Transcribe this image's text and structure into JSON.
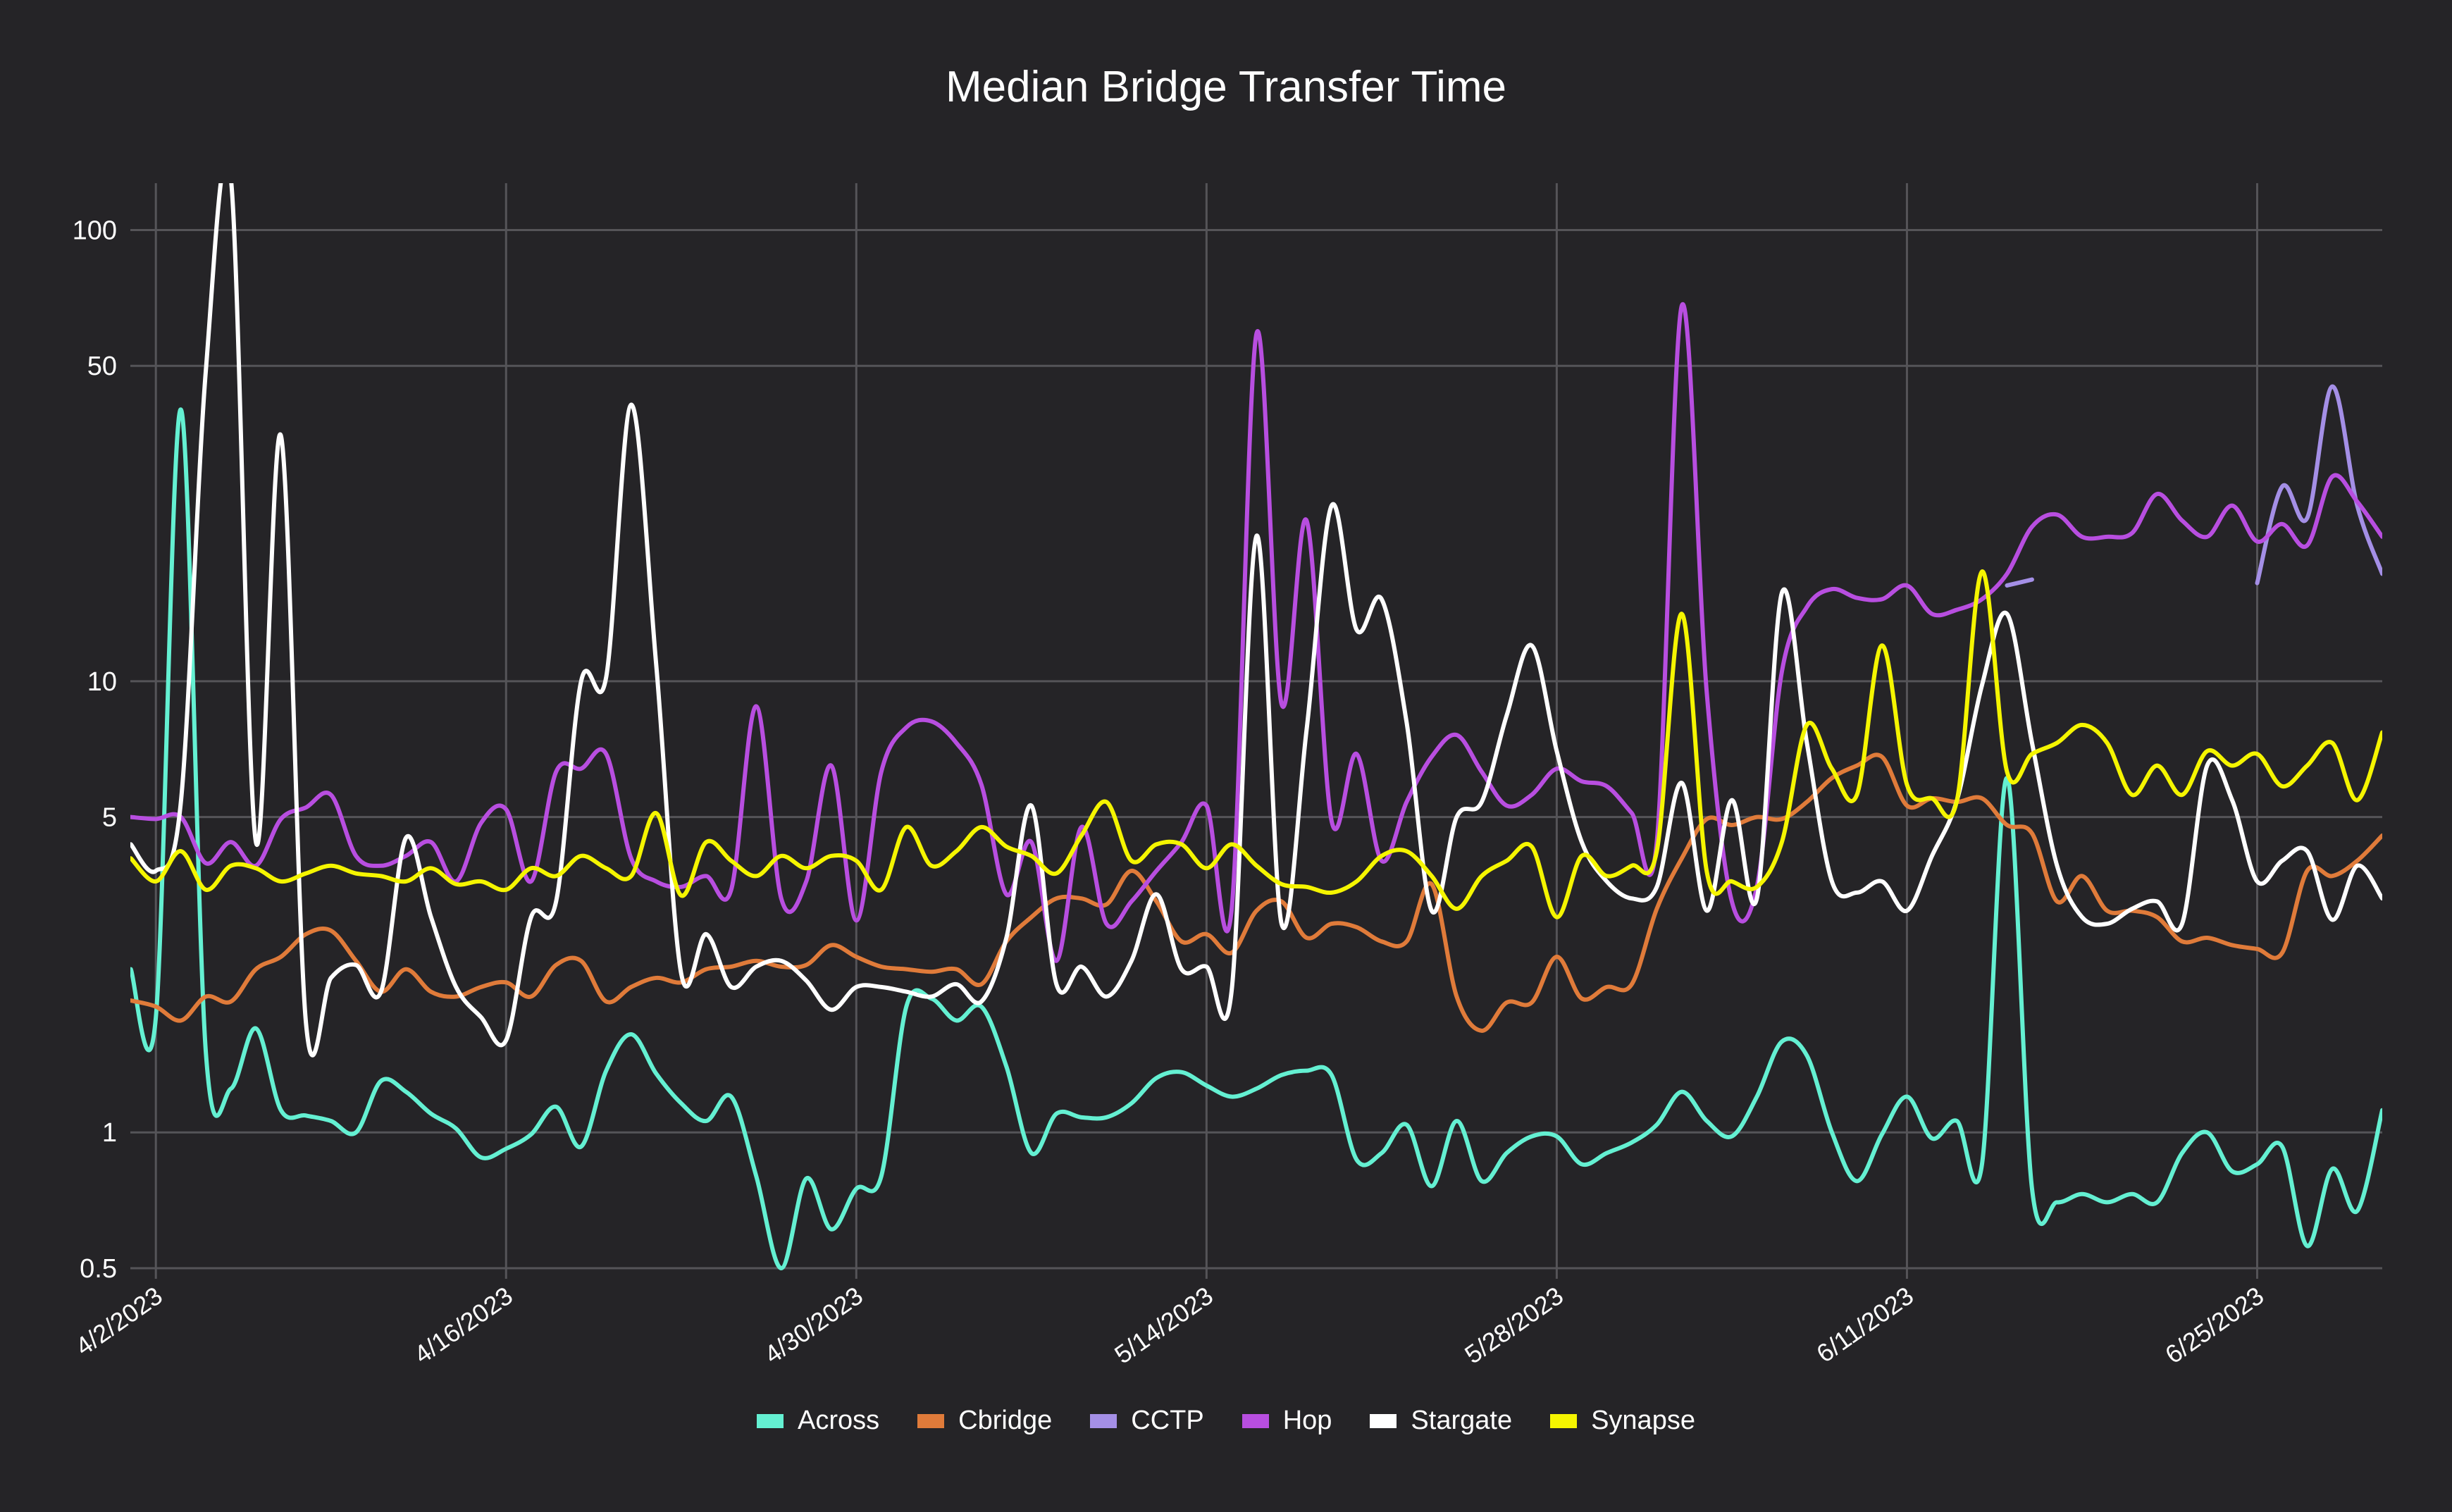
{
  "chart_data": {
    "type": "line",
    "title": "Median Bridge Transfer Time",
    "xlabel": "",
    "ylabel": "",
    "y_scale": "log",
    "ylim": [
      0.5,
      127
    ],
    "grid": true,
    "legend_position": "bottom",
    "y_ticks": [
      {
        "value": 100,
        "label": "100"
      },
      {
        "value": 50,
        "label": "50"
      },
      {
        "value": 10,
        "label": "10"
      },
      {
        "value": 5,
        "label": "5"
      },
      {
        "value": 1,
        "label": "1"
      },
      {
        "value": 0.5,
        "label": "0.5"
      }
    ],
    "x_ticks": [
      "4/2/2023",
      "4/16/2023",
      "4/30/2023",
      "5/14/2023",
      "5/28/2023",
      "6/11/2023",
      "6/25/2023"
    ],
    "x": [
      "4/1/2023",
      "4/2/2023",
      "4/3/2023",
      "4/4/2023",
      "4/5/2023",
      "4/6/2023",
      "4/7/2023",
      "4/8/2023",
      "4/9/2023",
      "4/10/2023",
      "4/11/2023",
      "4/12/2023",
      "4/13/2023",
      "4/14/2023",
      "4/15/2023",
      "4/16/2023",
      "4/17/2023",
      "4/18/2023",
      "4/19/2023",
      "4/20/2023",
      "4/21/2023",
      "4/22/2023",
      "4/23/2023",
      "4/24/2023",
      "4/25/2023",
      "4/26/2023",
      "4/27/2023",
      "4/28/2023",
      "4/29/2023",
      "4/30/2023",
      "5/1/2023",
      "5/2/2023",
      "5/3/2023",
      "5/4/2023",
      "5/5/2023",
      "5/6/2023",
      "5/7/2023",
      "5/8/2023",
      "5/9/2023",
      "5/10/2023",
      "5/11/2023",
      "5/12/2023",
      "5/13/2023",
      "5/14/2023",
      "5/15/2023",
      "5/16/2023",
      "5/17/2023",
      "5/18/2023",
      "5/19/2023",
      "5/20/2023",
      "5/21/2023",
      "5/22/2023",
      "5/23/2023",
      "5/24/2023",
      "5/25/2023",
      "5/26/2023",
      "5/27/2023",
      "5/28/2023",
      "5/29/2023",
      "5/30/2023",
      "5/31/2023",
      "6/1/2023",
      "6/2/2023",
      "6/3/2023",
      "6/4/2023",
      "6/5/2023",
      "6/6/2023",
      "6/7/2023",
      "6/8/2023",
      "6/9/2023",
      "6/10/2023",
      "6/11/2023",
      "6/12/2023",
      "6/13/2023",
      "6/14/2023",
      "6/15/2023",
      "6/16/2023",
      "6/17/2023",
      "6/18/2023",
      "6/19/2023",
      "6/20/2023",
      "6/21/2023",
      "6/22/2023",
      "6/23/2023",
      "6/24/2023",
      "6/25/2023",
      "6/26/2023",
      "6/27/2023",
      "6/28/2023",
      "6/29/2023",
      "6/30/2023"
    ],
    "series": [
      {
        "name": "Across",
        "color": "#64f0d2",
        "values": [
          2.3,
          1.8,
          40,
          1.5,
          1.25,
          1.7,
          1.12,
          1.09,
          1.06,
          1.0,
          1.3,
          1.23,
          1.1,
          1.02,
          0.88,
          0.92,
          0.99,
          1.14,
          0.93,
          1.37,
          1.65,
          1.35,
          1.16,
          1.06,
          1.2,
          0.8,
          0.5,
          0.79,
          0.61,
          0.75,
          0.8,
          1.9,
          1.98,
          1.77,
          1.9,
          1.4,
          0.9,
          1.1,
          1.08,
          1.08,
          1.16,
          1.32,
          1.36,
          1.27,
          1.2,
          1.25,
          1.34,
          1.37,
          1.34,
          0.87,
          0.9,
          1.04,
          0.76,
          1.06,
          0.78,
          0.9,
          0.98,
          0.98,
          0.85,
          0.9,
          0.95,
          1.04,
          1.23,
          1.06,
          0.98,
          1.2,
          1.59,
          1.48,
          1.0,
          0.78,
          0.99,
          1.2,
          0.97,
          1.06,
          0.85,
          6.1,
          0.75,
          0.7,
          0.73,
          0.7,
          0.73,
          0.7,
          0.9,
          1.0,
          0.82,
          0.85,
          0.93,
          0.56,
          0.83,
          0.67,
          1.12
        ]
      },
      {
        "name": "Cbridge",
        "color": "#e07b3a",
        "values": [
          1.96,
          1.9,
          1.77,
          2.0,
          1.95,
          2.3,
          2.45,
          2.75,
          2.8,
          2.4,
          2.05,
          2.3,
          2.05,
          2.0,
          2.1,
          2.15,
          2.0,
          2.35,
          2.4,
          1.95,
          2.1,
          2.2,
          2.15,
          2.3,
          2.33,
          2.4,
          2.33,
          2.35,
          2.6,
          2.45,
          2.33,
          2.3,
          2.27,
          2.3,
          2.13,
          2.65,
          3.0,
          3.3,
          3.3,
          3.2,
          3.8,
          3.25,
          2.65,
          2.75,
          2.5,
          3.1,
          3.25,
          2.7,
          2.9,
          2.85,
          2.65,
          2.65,
          3.55,
          2.0,
          1.68,
          1.94,
          1.94,
          2.45,
          1.98,
          2.1,
          2.13,
          3.13,
          4.05,
          4.95,
          4.8,
          5.0,
          4.95,
          5.4,
          6.1,
          6.5,
          6.8,
          5.3,
          5.5,
          5.4,
          5.5,
          4.8,
          4.6,
          3.25,
          3.7,
          3.1,
          3.1,
          3.0,
          2.65,
          2.7,
          2.6,
          2.55,
          2.5,
          3.8,
          3.7,
          4.0,
          4.55
        ]
      },
      {
        "name": "CCTP",
        "color": "#a48fe6",
        "values": [
          null,
          null,
          null,
          null,
          null,
          null,
          null,
          null,
          null,
          null,
          null,
          null,
          null,
          null,
          null,
          null,
          null,
          null,
          null,
          null,
          null,
          null,
          null,
          null,
          null,
          null,
          null,
          null,
          null,
          null,
          null,
          null,
          null,
          null,
          null,
          null,
          null,
          null,
          null,
          null,
          null,
          null,
          null,
          null,
          null,
          null,
          null,
          null,
          null,
          null,
          null,
          null,
          null,
          null,
          null,
          null,
          null,
          null,
          null,
          null,
          null,
          null,
          null,
          null,
          null,
          null,
          null,
          null,
          null,
          null,
          null,
          null,
          null,
          null,
          null,
          16.3,
          16.8,
          null,
          null,
          null,
          null,
          null,
          null,
          null,
          null,
          16.5,
          27,
          23,
          45,
          24.5,
          17.3
        ]
      },
      {
        "name": "Hop",
        "color": "#b84ee0",
        "values": [
          5.0,
          4.95,
          5.0,
          3.95,
          4.4,
          3.9,
          4.95,
          5.25,
          5.6,
          4.1,
          3.9,
          4.1,
          4.4,
          3.6,
          4.85,
          5.2,
          3.6,
          6.3,
          6.4,
          6.9,
          4.05,
          3.6,
          3.5,
          3.7,
          3.45,
          8.8,
          3.3,
          3.6,
          6.5,
          2.95,
          6.3,
          7.9,
          8.15,
          7.3,
          5.9,
          3.37,
          4.4,
          2.4,
          4.75,
          2.9,
          3.25,
          3.8,
          4.4,
          5.3,
          3.1,
          59,
          8.9,
          22.7,
          4.9,
          6.9,
          4.0,
          5.4,
          6.8,
          7.6,
          6.3,
          5.3,
          5.6,
          6.4,
          6.0,
          5.85,
          5.1,
          4.4,
          68,
          9.4,
          3.25,
          3.5,
          10.5,
          14.6,
          16,
          15.3,
          15.2,
          16.3,
          14.1,
          14.4,
          15.2,
          17.3,
          22,
          23.4,
          20.9,
          20.9,
          21.3,
          26,
          22.7,
          20.9,
          24.5,
          20.4,
          22.3,
          20,
          28.4,
          25,
          20.9
        ]
      },
      {
        "name": "Stargate",
        "color": "#ffffff",
        "values": [
          4.35,
          3.8,
          5.4,
          49,
          130,
          4.4,
          35,
          1.75,
          2.2,
          2.35,
          2.05,
          4.5,
          3.0,
          2.1,
          1.8,
          1.6,
          3.0,
          3.25,
          10,
          10.2,
          41,
          10.9,
          2.25,
          2.75,
          2.1,
          2.33,
          2.4,
          2.17,
          1.87,
          2.1,
          2.1,
          2.05,
          2.0,
          2.13,
          1.95,
          2.7,
          5.3,
          2.13,
          2.33,
          2.0,
          2.4,
          3.37,
          2.3,
          2.33,
          2.05,
          21,
          2.9,
          7.8,
          24.5,
          13,
          15.2,
          8.1,
          3.1,
          5.0,
          5.4,
          8.4,
          12,
          7.0,
          4.4,
          3.6,
          3.3,
          3.5,
          5.95,
          3.1,
          5.45,
          3.3,
          15.7,
          7.3,
          3.6,
          3.4,
          3.6,
          3.1,
          4.1,
          5.45,
          9.8,
          14.1,
          7.3,
          3.9,
          3.0,
          2.9,
          3.13,
          3.25,
          2.9,
          6.5,
          5.45,
          3.6,
          4.0,
          4.2,
          2.96,
          3.9,
          3.3
        ]
      },
      {
        "name": "Synapse",
        "color": "#f5f500",
        "values": [
          4.05,
          3.6,
          4.2,
          3.45,
          3.9,
          3.85,
          3.6,
          3.75,
          3.9,
          3.75,
          3.7,
          3.6,
          3.85,
          3.55,
          3.6,
          3.45,
          3.85,
          3.7,
          4.1,
          3.85,
          3.7,
          5.1,
          3.35,
          4.4,
          4.0,
          3.7,
          4.1,
          3.85,
          4.1,
          4.0,
          3.45,
          4.75,
          3.9,
          4.2,
          4.75,
          4.3,
          4.1,
          3.75,
          4.55,
          5.4,
          4.0,
          4.35,
          4.35,
          3.85,
          4.35,
          3.9,
          3.55,
          3.5,
          3.4,
          3.6,
          4.1,
          4.2,
          3.7,
          3.13,
          3.7,
          4.0,
          4.3,
          3.0,
          4.1,
          3.7,
          3.9,
          4.2,
          14.1,
          3.78,
          3.6,
          3.5,
          4.4,
          8.0,
          6.4,
          5.6,
          12,
          5.9,
          5.5,
          5.45,
          17.5,
          6.3,
          6.9,
          7.3,
          8.0,
          7.3,
          5.6,
          6.5,
          5.6,
          7.0,
          6.5,
          6.9,
          5.85,
          6.5,
          7.3,
          5.45,
          7.7
        ]
      }
    ]
  }
}
